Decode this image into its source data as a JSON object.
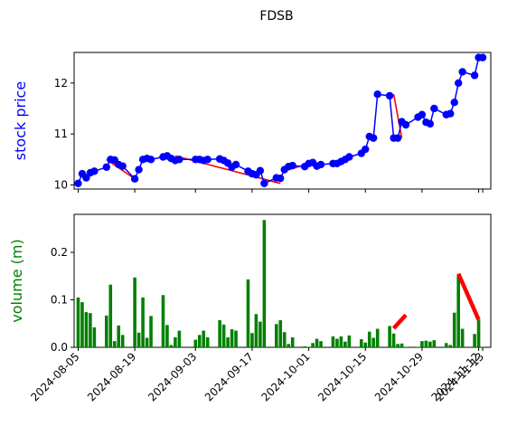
{
  "chart_data": {
    "title": "FDSB",
    "type": "line",
    "panels": [
      {
        "name": "price",
        "type": "line",
        "ylabel": "stock price",
        "ylabel_color": "#0000ff",
        "ylim": [
          9.92,
          12.6
        ],
        "yticks": [
          10,
          11,
          12
        ],
        "series_color": "#0000ff",
        "trend_color": "#ff0000",
        "grid": false
      },
      {
        "name": "volume",
        "type": "bar",
        "ylabel": "volume (m)",
        "ylabel_color": "#008000",
        "ylim": [
          0,
          0.28
        ],
        "yticks": [
          0.0,
          0.1,
          0.2
        ],
        "ytick_labels": [
          "0.0",
          "0.1",
          "0.2"
        ],
        "bar_color": "#008000",
        "trend_color": "#ff0000",
        "grid": false
      }
    ],
    "xlim": [
      "2024-08-04",
      "2024-11-15"
    ],
    "xticks": [
      "2024-08-05",
      "2024-08-19",
      "2024-09-03",
      "2024-09-17",
      "2024-10-01",
      "2024-10-15",
      "2024-10-29",
      "2024-11-12",
      "2024-11-13"
    ],
    "x": [
      "2024-08-05",
      "2024-08-06",
      "2024-08-07",
      "2024-08-08",
      "2024-08-09",
      "2024-08-12",
      "2024-08-13",
      "2024-08-14",
      "2024-08-15",
      "2024-08-16",
      "2024-08-19",
      "2024-08-20",
      "2024-08-21",
      "2024-08-22",
      "2024-08-23",
      "2024-08-26",
      "2024-08-27",
      "2024-08-28",
      "2024-08-29",
      "2024-08-30",
      "2024-09-03",
      "2024-09-04",
      "2024-09-05",
      "2024-09-06",
      "2024-09-09",
      "2024-09-10",
      "2024-09-11",
      "2024-09-12",
      "2024-09-13",
      "2024-09-16",
      "2024-09-17",
      "2024-09-18",
      "2024-09-19",
      "2024-09-20",
      "2024-09-23",
      "2024-09-24",
      "2024-09-25",
      "2024-09-26",
      "2024-09-27",
      "2024-09-30",
      "2024-10-01",
      "2024-10-02",
      "2024-10-03",
      "2024-10-04",
      "2024-10-07",
      "2024-10-08",
      "2024-10-09",
      "2024-10-10",
      "2024-10-11",
      "2024-10-14",
      "2024-10-15",
      "2024-10-16",
      "2024-10-17",
      "2024-10-18",
      "2024-10-21",
      "2024-10-22",
      "2024-10-23",
      "2024-10-24",
      "2024-10-25",
      "2024-10-28",
      "2024-10-29",
      "2024-10-30",
      "2024-10-31",
      "2024-11-01",
      "2024-11-04",
      "2024-11-05",
      "2024-11-06",
      "2024-11-07",
      "2024-11-08",
      "2024-11-11",
      "2024-11-12",
      "2024-11-13"
    ],
    "price": [
      10.03,
      10.22,
      10.14,
      10.24,
      10.27,
      10.35,
      10.5,
      10.49,
      10.4,
      10.37,
      10.12,
      10.3,
      10.5,
      10.52,
      10.5,
      10.55,
      10.57,
      10.52,
      10.48,
      10.5,
      10.5,
      10.5,
      10.48,
      10.5,
      10.51,
      10.48,
      10.43,
      10.35,
      10.4,
      10.27,
      10.22,
      10.2,
      10.28,
      10.03,
      10.14,
      10.13,
      10.3,
      10.36,
      10.38,
      10.36,
      10.42,
      10.44,
      10.37,
      10.4,
      10.42,
      10.42,
      10.46,
      10.5,
      10.55,
      10.62,
      10.7,
      10.95,
      10.92,
      11.78,
      11.75,
      10.92,
      10.92,
      11.24,
      11.18,
      11.33,
      11.38,
      11.23,
      11.2,
      11.5,
      11.38,
      11.4,
      11.62,
      12.0,
      12.22,
      12.15,
      12.5,
      12.5
    ],
    "volume": [
      0.105,
      0.095,
      0.074,
      0.072,
      0.042,
      0.067,
      0.132,
      0.013,
      0.046,
      0.026,
      0.147,
      0.031,
      0.105,
      0.02,
      0.066,
      0.11,
      0.047,
      0.005,
      0.021,
      0.035,
      0.016,
      0.026,
      0.035,
      0.021,
      0.057,
      0.048,
      0.021,
      0.038,
      0.035,
      0.143,
      0.03,
      0.07,
      0.054,
      0.268,
      0.049,
      0.057,
      0.032,
      0.007,
      0.021,
      0.002,
      0.001,
      0.009,
      0.018,
      0.013,
      0.023,
      0.018,
      0.023,
      0.012,
      0.025,
      0.017,
      0.01,
      0.033,
      0.02,
      0.039,
      0.045,
      0.029,
      0.007,
      0.008,
      0.001,
      0.001,
      0.013,
      0.014,
      0.012,
      0.015,
      0.009,
      0.005,
      0.073,
      0.151,
      0.039,
      0.028,
      0.058,
      0.001
    ],
    "price_trend_segments": [
      [
        [
          "2024-08-12",
          10.5
        ],
        [
          "2024-08-19",
          10.12
        ]
      ],
      [
        [
          "2024-08-29",
          10.57
        ],
        [
          "2024-09-24",
          10.03
        ]
      ],
      [
        [
          "2024-09-26",
          10.3
        ],
        [
          "2024-10-02",
          10.44
        ]
      ],
      [
        [
          "2024-10-22",
          11.78
        ],
        [
          "2024-10-24",
          10.92
        ]
      ]
    ],
    "volume_trend_segments": [
      [
        [
          "2024-10-22",
          0.04
        ],
        [
          "2024-10-25",
          0.068
        ]
      ],
      [
        [
          "2024-11-07",
          0.155
        ],
        [
          "2024-11-12",
          0.058
        ]
      ]
    ]
  }
}
